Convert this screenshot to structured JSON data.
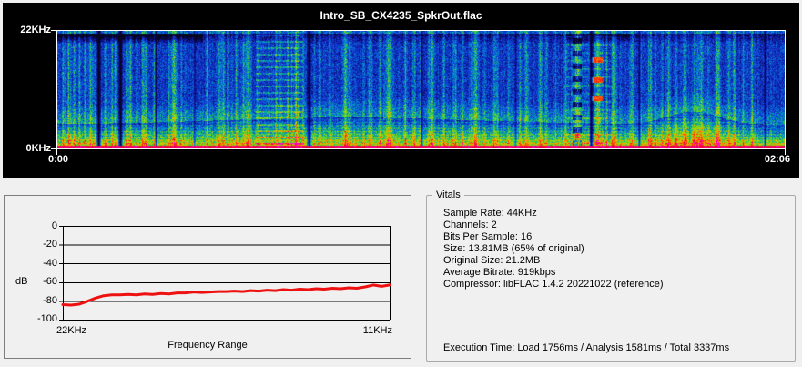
{
  "window": {
    "background": "#f0f0f0"
  },
  "spectrogram": {
    "title": "Intro_SB_CX4235_SpkrOut.flac",
    "y_top_label": "22KHz",
    "y_bottom_label": "0KHz",
    "x_start_label": "0:00",
    "x_end_label": "02:06",
    "panel_background": "#000000",
    "axis_color": "#ffffff"
  },
  "response_chart": {
    "ylabel": "dB",
    "xlabel": "Frequency Range",
    "x_left_label": "22KHz",
    "x_right_label": "11KHz",
    "y_ticks": [
      "0",
      "-20",
      "-40",
      "-60",
      "-80",
      "-100"
    ],
    "line_color": "#ee1111"
  },
  "vitals": {
    "legend": "Vitals",
    "lines": [
      "Sample Rate: 44KHz",
      "Channels: 2",
      "Bits Per Sample: 16",
      "Size: 13.81MB (65% of original)",
      "Original Size: 21.2MB",
      "Average Bitrate: 919kbps",
      "Compressor: libFLAC 1.4.2 20221022 (reference)"
    ],
    "execution": "Execution Time: Load 1756ms / Analysis 1581ms / Total 3337ms"
  },
  "chart_data": [
    {
      "type": "heatmap",
      "title": "Intro_SB_CX4235_SpkrOut.flac",
      "description": "Audio spectrogram: time 0:00 to 02:06 on x-axis, frequency 0KHz to 22KHz on y-axis; blue = quiet background, green vertical streaks = transients, yellow/orange/red hot band at low frequencies, magenta row at the very bottom, dark columns at silent gaps",
      "x_range": [
        "0:00",
        "02:06"
      ],
      "y_range_khz": [
        0,
        22
      ],
      "legend_position": "none",
      "grid": false
    },
    {
      "type": "line",
      "title": "Frequency Range",
      "xlabel": "Frequency Range",
      "ylabel": "dB",
      "x_axis_labels": [
        "22KHz",
        "11KHz"
      ],
      "ylim": [
        -100,
        0
      ],
      "grid": true,
      "legend_position": "none",
      "x_khz": [
        22,
        21.725,
        21.45,
        21.175,
        20.9,
        20.625,
        20.35,
        20.075,
        19.8,
        19.525,
        19.25,
        18.975,
        18.7,
        18.425,
        18.15,
        17.875,
        17.6,
        17.325,
        17.05,
        16.775,
        16.5,
        16.225,
        15.95,
        15.675,
        15.4,
        15.125,
        14.85,
        14.575,
        14.3,
        14.025,
        13.75,
        13.475,
        13.2,
        12.925,
        12.65,
        12.375,
        12.1,
        11.825,
        11.55,
        11.275,
        11
      ],
      "y_db": [
        -84,
        -84.5,
        -83.5,
        -80.5,
        -77,
        -74.5,
        -73.5,
        -73.5,
        -73,
        -73.5,
        -72.5,
        -73,
        -72,
        -72.5,
        -71.5,
        -71.5,
        -70.5,
        -71,
        -70.5,
        -70,
        -70,
        -69.5,
        -70,
        -69,
        -69.5,
        -68.5,
        -69,
        -68,
        -68.5,
        -67.5,
        -68,
        -67,
        -67.5,
        -66.5,
        -67,
        -66,
        -66.5,
        -65,
        -63,
        -64.5,
        -63
      ]
    }
  ]
}
